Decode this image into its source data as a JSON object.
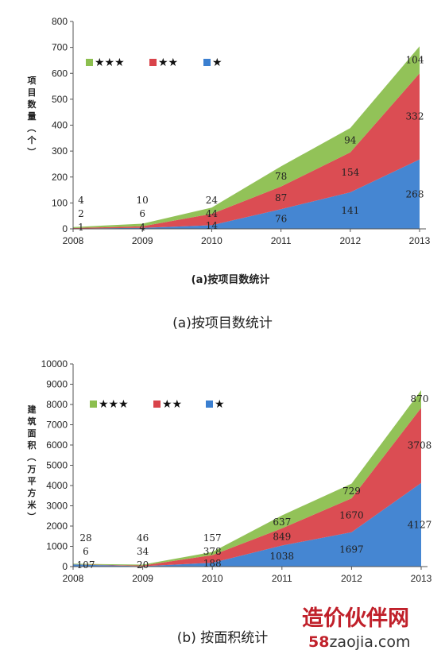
{
  "chart_data": [
    {
      "type": "area",
      "stacked": true,
      "x": [
        "2008",
        "2009",
        "2010",
        "2011",
        "2012",
        "2013"
      ],
      "ylabel": "项目数量（个）",
      "ylim": [
        0,
        800
      ],
      "yticks": [
        0,
        100,
        200,
        300,
        400,
        500,
        600,
        700,
        800
      ],
      "grid": false,
      "legend_position": "top-left",
      "series": [
        {
          "name": "★",
          "color": "#3b7fd0",
          "values": [
            1,
            4,
            14,
            76,
            141,
            268
          ]
        },
        {
          "name": "★★",
          "color": "#d9434a",
          "values": [
            2,
            6,
            44,
            87,
            154,
            332
          ]
        },
        {
          "name": "★★★",
          "color": "#8cbf4f",
          "values": [
            4,
            10,
            24,
            78,
            94,
            104
          ]
        }
      ],
      "subtitle": "(a)按项目数统计",
      "caption": "(a)按项目数统计"
    },
    {
      "type": "area",
      "stacked": true,
      "x": [
        "2008",
        "2009",
        "2010",
        "2011",
        "2012",
        "2013"
      ],
      "ylabel": "建筑面积（万平方米）",
      "ylim": [
        0,
        10000
      ],
      "yticks": [
        0,
        1000,
        2000,
        3000,
        4000,
        5000,
        6000,
        7000,
        8000,
        9000,
        10000
      ],
      "grid": false,
      "legend_position": "top-left",
      "series": [
        {
          "name": "★",
          "color": "#3b7fd0",
          "values": [
            107,
            20,
            188,
            1038,
            1697,
            4127
          ]
        },
        {
          "name": "★★",
          "color": "#d9434a",
          "values": [
            6,
            34,
            378,
            849,
            1670,
            3708
          ]
        },
        {
          "name": "★★★",
          "color": "#8cbf4f",
          "values": [
            28,
            46,
            157,
            637,
            729,
            870
          ]
        }
      ],
      "caption": "(b) 按面积统计"
    }
  ],
  "watermark": {
    "line1": "造价伙伴网",
    "line2_num": "58",
    "line2_text": "zaojia.com"
  }
}
